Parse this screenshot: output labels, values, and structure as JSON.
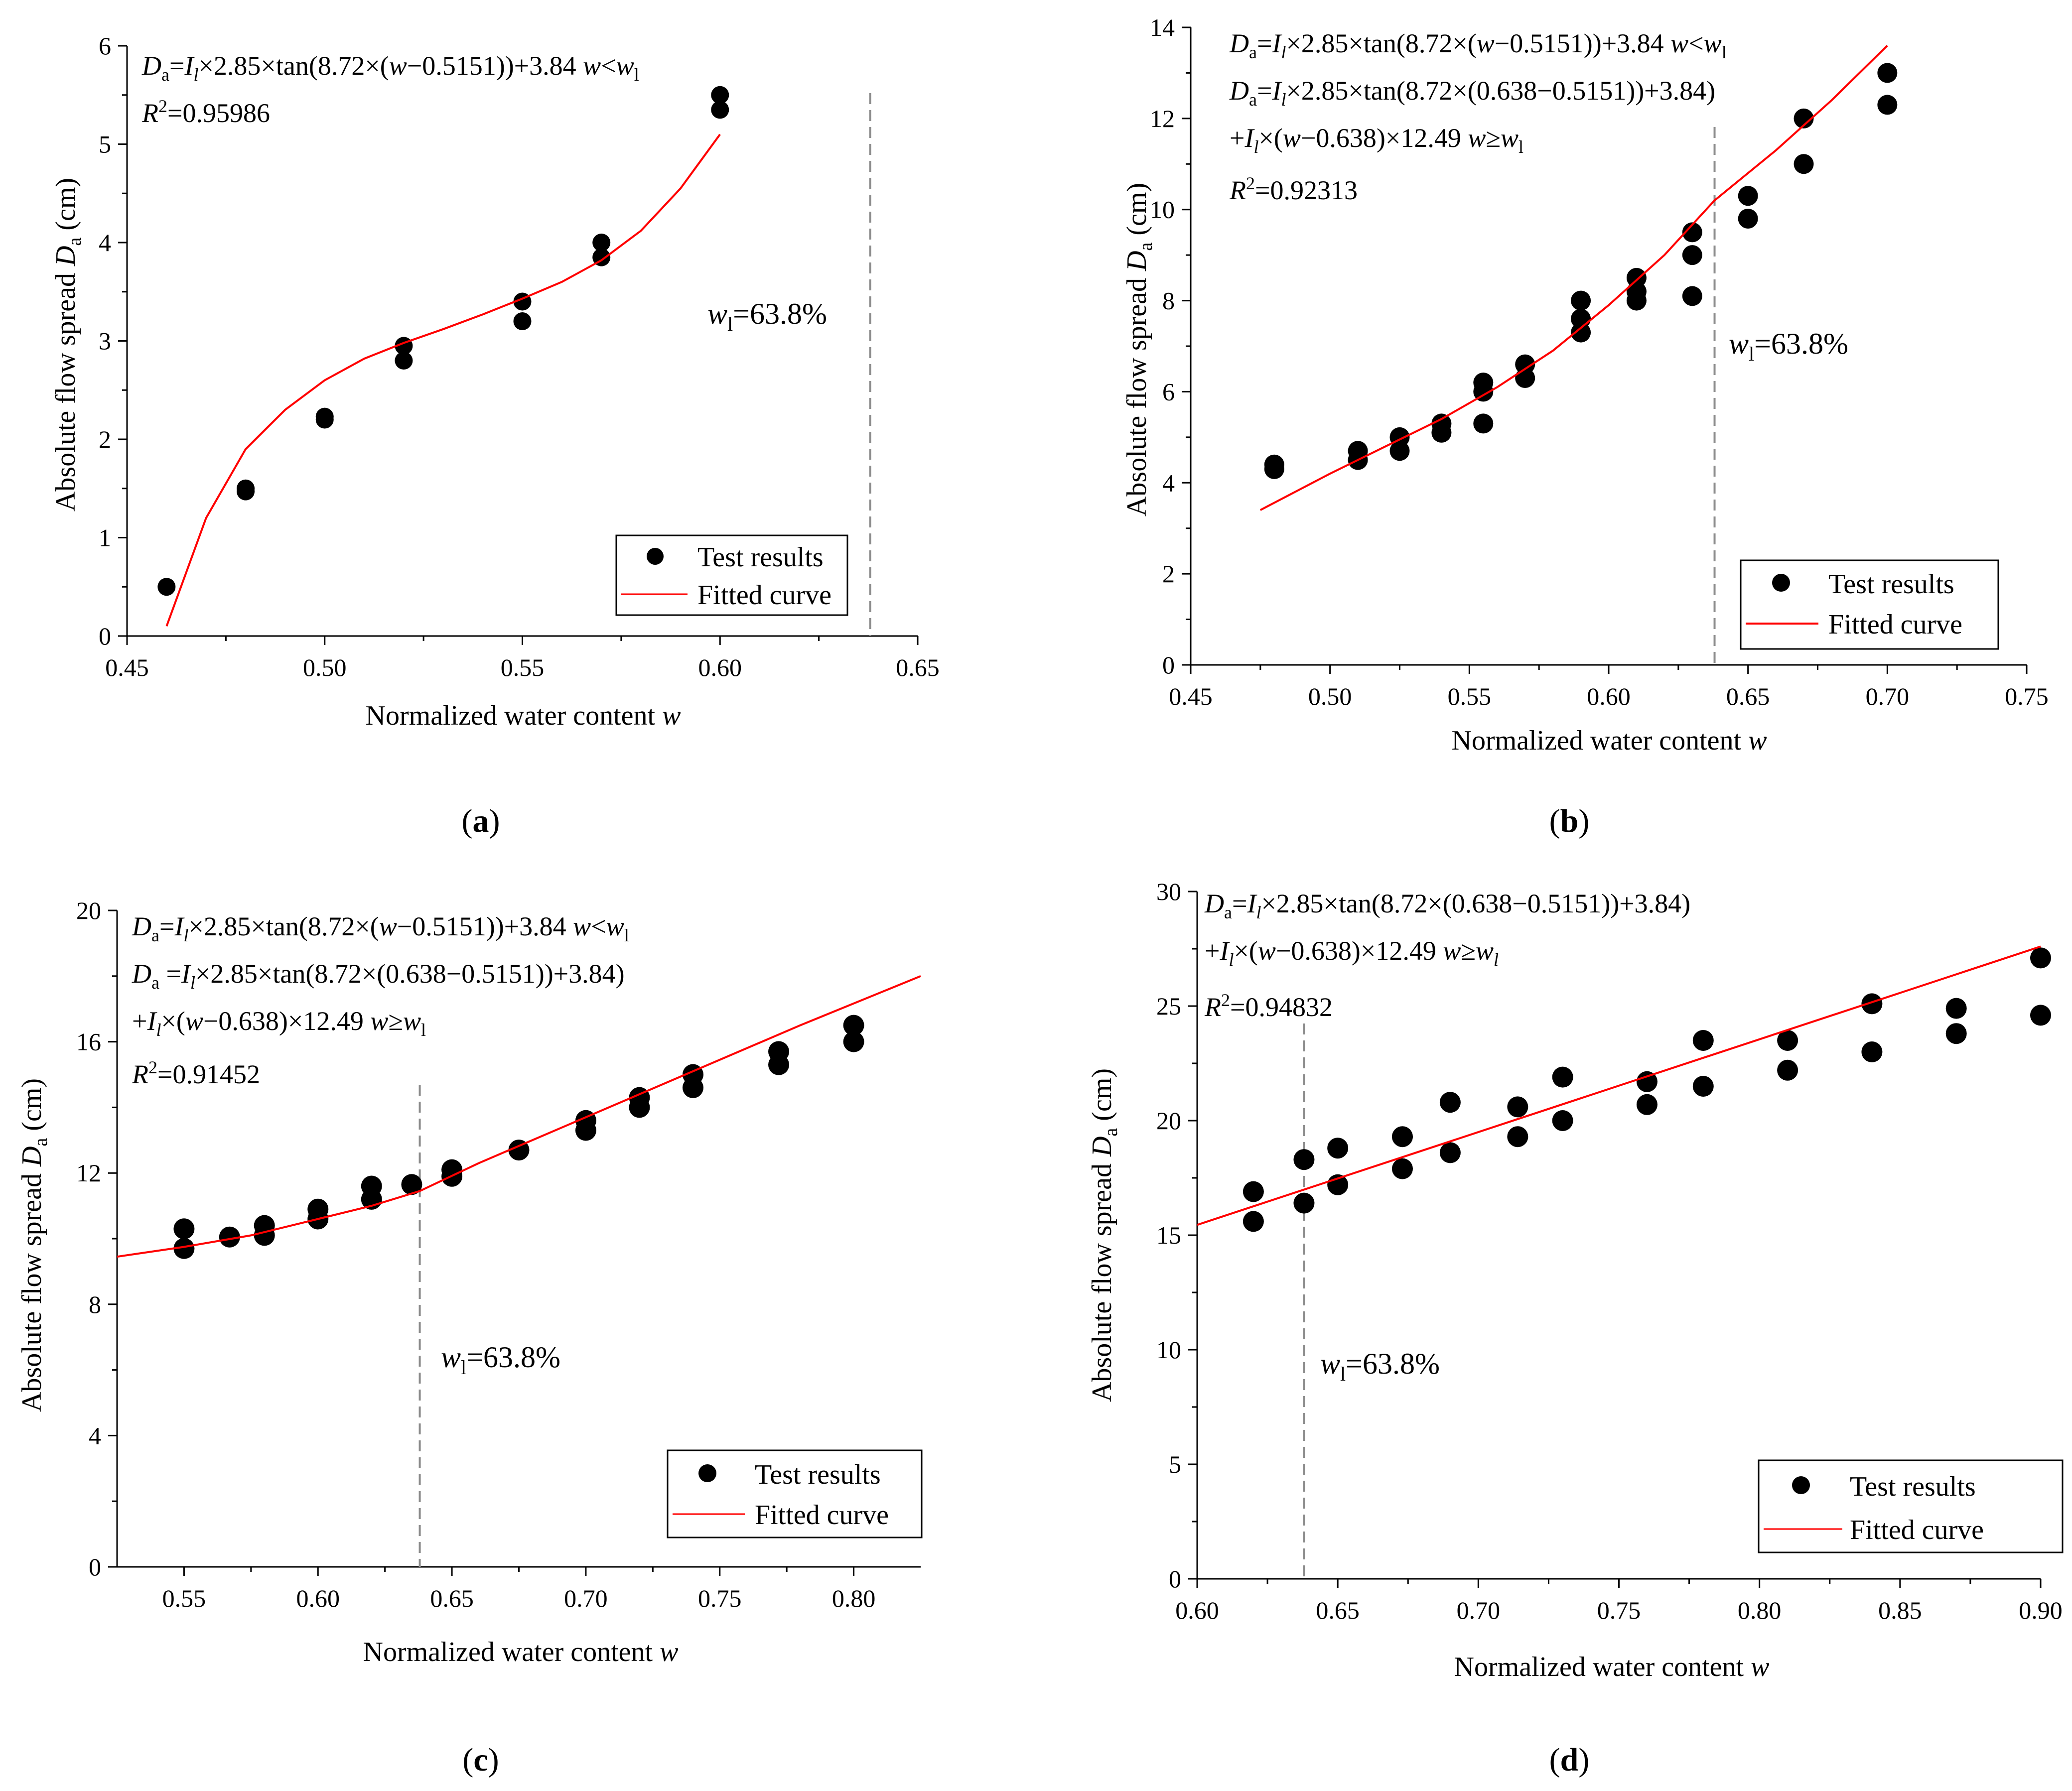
{
  "figure": {
    "series_names": [
      "Test results",
      "Fitted curve"
    ],
    "colors": {
      "points": "#000000",
      "curve": "#ff0000",
      "threshold": "#8c8c8c",
      "axes": "#000000"
    }
  },
  "chart_data": [
    {
      "id": "a",
      "type": "scatter",
      "panel_label": "a",
      "xlabel": "Normalized water content w",
      "ylabel": "Absolute flow spread Da (cm)",
      "xlim": [
        0.45,
        0.65
      ],
      "ylim": [
        0,
        6
      ],
      "xticks": [
        "0.45",
        "0.50",
        "0.55",
        "0.60",
        "0.65"
      ],
      "yticks": [
        "0",
        "1",
        "2",
        "3",
        "4",
        "5",
        "6"
      ],
      "legend": {
        "position": "bottom-right",
        "entries": [
          "Test results",
          "Fitted curve"
        ]
      },
      "threshold": {
        "x": 0.638,
        "label": "wl=63.8%"
      },
      "equations": [
        "Da=Il×2.85×tan(8.72×(w−0.5151))+3.84  w<wl",
        "R2=0.95986"
      ],
      "series": [
        {
          "name": "Test results",
          "kind": "points",
          "x": [
            0.46,
            0.48,
            0.48,
            0.5,
            0.5,
            0.52,
            0.52,
            0.55,
            0.55,
            0.57,
            0.57,
            0.6,
            0.6
          ],
          "y": [
            0.5,
            1.47,
            1.5,
            2.2,
            2.23,
            2.8,
            2.95,
            3.2,
            3.4,
            3.85,
            4.0,
            5.35,
            5.5
          ]
        },
        {
          "name": "Fitted curve",
          "kind": "line",
          "x": [
            0.46,
            0.47,
            0.48,
            0.49,
            0.5,
            0.51,
            0.52,
            0.53,
            0.54,
            0.55,
            0.56,
            0.57,
            0.58,
            0.59,
            0.6
          ],
          "y": [
            0.1,
            1.2,
            1.9,
            2.3,
            2.6,
            2.82,
            2.98,
            3.12,
            3.27,
            3.43,
            3.6,
            3.82,
            4.12,
            4.55,
            5.1
          ]
        }
      ]
    },
    {
      "id": "b",
      "type": "scatter",
      "panel_label": "b",
      "xlabel": "Normalized water content w",
      "ylabel": "Absolute flow spread Da (cm)",
      "xlim": [
        0.45,
        0.75
      ],
      "ylim": [
        0,
        14
      ],
      "xticks": [
        "0.45",
        "0.50",
        "0.55",
        "0.60",
        "0.65",
        "0.70",
        "0.75"
      ],
      "yticks": [
        "0",
        "2",
        "4",
        "6",
        "8",
        "10",
        "12",
        "14"
      ],
      "legend": {
        "position": "bottom-right",
        "entries": [
          "Test results",
          "Fitted curve"
        ]
      },
      "threshold": {
        "x": 0.638,
        "label": "wl=63.8%"
      },
      "equations": [
        "Da=Il×2.85×tan(8.72×(w−0.5151))+3.84  w<wl",
        "Da=Il×2.85×tan(8.72×(0.638−0.5151))+3.84)",
        "+Il×(w−0.638)×12.49 w≥wl",
        "R2=0.92313"
      ],
      "series": [
        {
          "name": "Test results",
          "kind": "points",
          "x": [
            0.48,
            0.48,
            0.51,
            0.51,
            0.525,
            0.525,
            0.54,
            0.54,
            0.555,
            0.555,
            0.555,
            0.57,
            0.57,
            0.59,
            0.59,
            0.59,
            0.61,
            0.61,
            0.61,
            0.63,
            0.63,
            0.63,
            0.65,
            0.65,
            0.67,
            0.67,
            0.7,
            0.7
          ],
          "y": [
            4.3,
            4.4,
            4.5,
            4.7,
            4.7,
            5.0,
            5.1,
            5.3,
            5.3,
            6.0,
            6.2,
            6.3,
            6.6,
            7.3,
            7.6,
            8.0,
            8.0,
            8.2,
            8.5,
            8.1,
            9.0,
            9.5,
            9.8,
            10.3,
            11.0,
            12.0,
            12.3,
            13.0
          ]
        },
        {
          "name": "Fitted curve",
          "kind": "line",
          "x": [
            0.475,
            0.5,
            0.52,
            0.54,
            0.56,
            0.58,
            0.6,
            0.62,
            0.638,
            0.66,
            0.68,
            0.7
          ],
          "y": [
            3.4,
            4.2,
            4.8,
            5.4,
            6.1,
            6.9,
            7.9,
            9.0,
            10.2,
            11.3,
            12.4,
            13.6
          ]
        }
      ]
    },
    {
      "id": "c",
      "type": "scatter",
      "panel_label": "c",
      "xlabel": "Normalized water content w",
      "ylabel": "Absolute flow spread Da (cm)",
      "xlim": [
        0.525,
        0.825
      ],
      "ylim": [
        0,
        20
      ],
      "xticks": [
        "0.55",
        "0.60",
        "0.65",
        "0.70",
        "0.75",
        "0.80"
      ],
      "yticks": [
        "0",
        "4",
        "8",
        "12",
        "16",
        "20"
      ],
      "legend": {
        "position": "bottom-right",
        "entries": [
          "Test results",
          "Fitted curve"
        ]
      },
      "threshold": {
        "x": 0.638,
        "label": "wl=63.8%"
      },
      "equations": [
        "Da=Il×2.85×tan(8.72×(w−0.5151))+3.84  w<wl",
        "Da =Il×2.85×tan(8.72×(0.638−0.5151))+3.84)",
        "+Il×(w−0.638)×12.49 w≥wl",
        "R2=0.91452"
      ],
      "series": [
        {
          "name": "Test results",
          "kind": "points",
          "x": [
            0.55,
            0.55,
            0.567,
            0.58,
            0.58,
            0.6,
            0.6,
            0.62,
            0.62,
            0.635,
            0.65,
            0.65,
            0.675,
            0.7,
            0.7,
            0.72,
            0.72,
            0.74,
            0.74,
            0.772,
            0.772,
            0.8,
            0.8
          ],
          "y": [
            9.7,
            10.3,
            10.05,
            10.1,
            10.4,
            10.6,
            10.9,
            11.2,
            11.6,
            11.65,
            11.9,
            12.1,
            12.7,
            13.3,
            13.6,
            14.0,
            14.3,
            14.6,
            15.0,
            15.3,
            15.7,
            16.0,
            16.5
          ]
        },
        {
          "name": "Fitted curve",
          "kind": "line",
          "x": [
            0.525,
            0.55,
            0.575,
            0.6,
            0.62,
            0.638,
            0.66,
            0.7,
            0.74,
            0.78,
            0.825
          ],
          "y": [
            9.45,
            9.75,
            10.1,
            10.6,
            11.0,
            11.45,
            12.3,
            13.7,
            15.1,
            16.5,
            18.0
          ]
        }
      ]
    },
    {
      "id": "d",
      "type": "scatter",
      "panel_label": "d",
      "xlabel": "Normalized water content w",
      "ylabel": "Absolute flow spread Da (cm)",
      "xlim": [
        0.6,
        0.9
      ],
      "ylim": [
        0,
        30
      ],
      "xticks": [
        "0.60",
        "0.65",
        "0.70",
        "0.75",
        "0.80",
        "0.85",
        "0.90"
      ],
      "yticks": [
        "0",
        "5",
        "10",
        "15",
        "20",
        "25",
        "30"
      ],
      "legend": {
        "position": "bottom-right",
        "entries": [
          "Test results",
          "Fitted curve"
        ]
      },
      "threshold": {
        "x": 0.638,
        "label": "wl=63.8%"
      },
      "equations": [
        "Da=Il×2.85×tan(8.72×(0.638−0.5151))+3.84)",
        "+Il×(w−0.638)×12.49 w≥wl",
        "R2=0.94832"
      ],
      "series": [
        {
          "name": "Test results",
          "kind": "points",
          "x": [
            0.62,
            0.62,
            0.638,
            0.638,
            0.65,
            0.65,
            0.673,
            0.673,
            0.69,
            0.69,
            0.714,
            0.714,
            0.73,
            0.73,
            0.76,
            0.76,
            0.78,
            0.78,
            0.81,
            0.81,
            0.84,
            0.84,
            0.87,
            0.87,
            0.9,
            0.9
          ],
          "y": [
            15.6,
            16.9,
            16.4,
            18.3,
            17.2,
            18.8,
            17.9,
            19.3,
            18.6,
            20.8,
            19.3,
            20.6,
            20.0,
            21.9,
            20.7,
            21.7,
            21.5,
            23.5,
            22.2,
            23.5,
            23.0,
            25.1,
            23.8,
            24.9,
            24.6,
            27.1
          ]
        },
        {
          "name": "Fitted curve",
          "kind": "line",
          "x": [
            0.6,
            0.9
          ],
          "y": [
            15.45,
            27.6
          ]
        }
      ]
    }
  ]
}
